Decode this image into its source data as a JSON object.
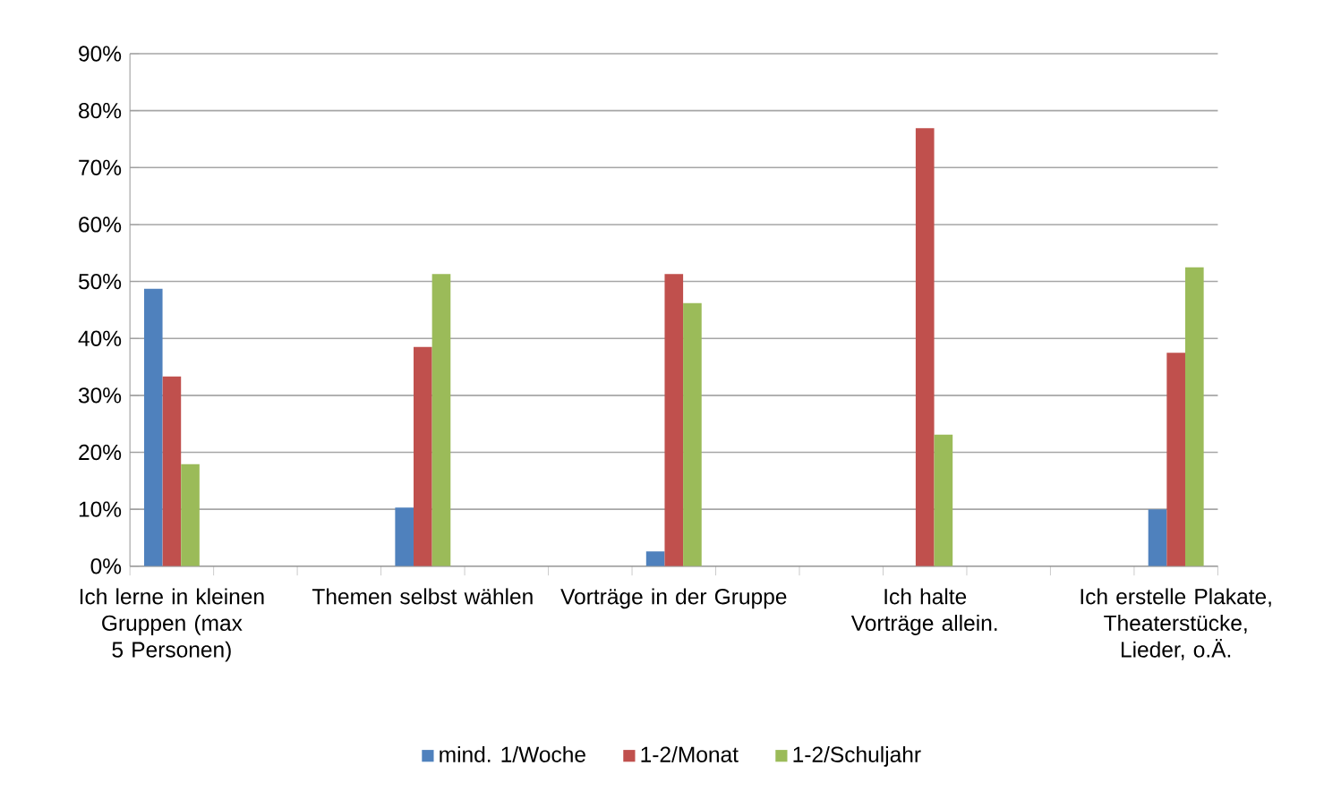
{
  "chart_data": {
    "type": "bar",
    "categories": [
      "Ich lerne in kleinen Gruppen (max 5 Personen)",
      null,
      null,
      "Themen selbst wählen",
      null,
      null,
      "Vorträge in der Gruppe",
      null,
      null,
      "Ich halte Vorträge allein.",
      null,
      null,
      "Ich erstelle Plakate, Theaterstücke, Lieder, o.Ä."
    ],
    "series": [
      {
        "name": "mind. 1/Woche",
        "color": "#4f81bd",
        "values": [
          48.7,
          null,
          null,
          10.3,
          null,
          null,
          2.6,
          null,
          null,
          0,
          null,
          null,
          10
        ]
      },
      {
        "name": "1-2/Monat",
        "color": "#c0504d",
        "values": [
          33.3,
          null,
          null,
          38.5,
          null,
          null,
          51.3,
          null,
          null,
          76.9,
          null,
          null,
          37.5
        ]
      },
      {
        "name": "1-2/Schuljahr",
        "color": "#9bbb59",
        "values": [
          17.9,
          null,
          null,
          51.3,
          null,
          null,
          46.2,
          null,
          null,
          23.1,
          null,
          null,
          52.5
        ]
      }
    ],
    "ylim": [
      0,
      90
    ],
    "yticks": [
      {
        "value": 0,
        "label": "0%"
      },
      {
        "value": 10,
        "label": "10%"
      },
      {
        "value": 20,
        "label": "20%"
      },
      {
        "value": 30,
        "label": "30%"
      },
      {
        "value": 40,
        "label": "40%"
      },
      {
        "value": 50,
        "label": "50%"
      },
      {
        "value": 60,
        "label": "60%"
      },
      {
        "value": 70,
        "label": "70%"
      },
      {
        "value": 80,
        "label": "80%"
      },
      {
        "value": 90,
        "label": "90%"
      }
    ],
    "grid": "y",
    "legend": "bottom"
  }
}
